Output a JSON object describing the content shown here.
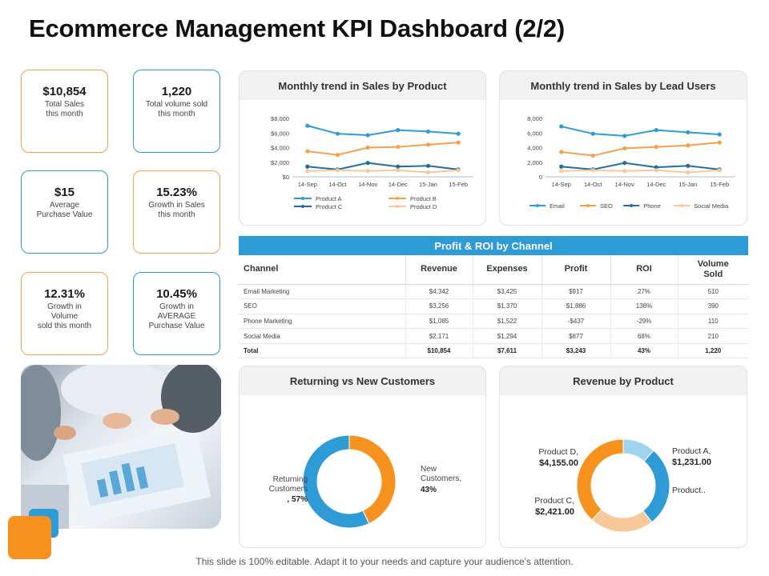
{
  "title": "Ecommerce Management KPI Dashboard (2/2)",
  "kpis": [
    {
      "value": "$10,854",
      "label": "Total Sales\nthis month"
    },
    {
      "value": "1,220",
      "label": "Total volume sold\nthis month"
    },
    {
      "value": "$15",
      "label": "Average\nPurchase Value"
    },
    {
      "value": "15.23%",
      "label": "Growth in Sales\nthis month"
    },
    {
      "value": "12.31%",
      "label": "Growth in\nVolume\nsold this month"
    },
    {
      "value": "10.45%",
      "label": "Growth in\nAVERAGE\nPurchase Value"
    }
  ],
  "colors": {
    "blue": "#2e9bd6",
    "orange": "#f6a04d",
    "darkblue": "#1f6f9b",
    "peach": "#f7c99a",
    "lightblue": "#9fd4ef"
  },
  "footer": "This slide is 100% editable. Adapt it to your needs and capture your audience's attention.",
  "chart_data": [
    {
      "type": "line",
      "title": "Monthly trend in Sales by Product",
      "categories": [
        "14-Sep",
        "14-Oct",
        "14-Nov",
        "14-Dec",
        "15-Jan",
        "15-Feb"
      ],
      "yticks": [
        "$0",
        "$2,000",
        "$4,000",
        "$6,000",
        "$8,000"
      ],
      "ylim": [
        0,
        8000
      ],
      "legend_position": "bottom",
      "series": [
        {
          "name": "Product A",
          "color": "#2e9bd6",
          "values": [
            7000,
            5900,
            5700,
            6400,
            6200,
            5900
          ]
        },
        {
          "name": "Product B",
          "color": "#f6a04d",
          "values": [
            3500,
            3000,
            4000,
            4100,
            4400,
            4700
          ]
        },
        {
          "name": "Product C",
          "color": "#1f6f9b",
          "values": [
            1400,
            1000,
            1900,
            1400,
            1500,
            1000
          ]
        },
        {
          "name": "Product D",
          "color": "#f7c99a",
          "values": [
            800,
            900,
            800,
            900,
            600,
            900
          ]
        }
      ]
    },
    {
      "type": "line",
      "title": "Monthly trend in Sales by Lead Users",
      "categories": [
        "14-Sep",
        "14-Oct",
        "14-Nov",
        "14-Dec",
        "15-Jan",
        "15-Feb"
      ],
      "yticks": [
        "0",
        "2,000",
        "4,000",
        "6,000",
        "8,000"
      ],
      "ylim": [
        0,
        8000
      ],
      "legend_position": "bottom",
      "series": [
        {
          "name": "Email",
          "color": "#2e9bd6",
          "values": [
            6900,
            5900,
            5600,
            6400,
            6100,
            5800
          ]
        },
        {
          "name": "SEO",
          "color": "#f6a04d",
          "values": [
            3400,
            2900,
            3900,
            4100,
            4300,
            4700
          ]
        },
        {
          "name": "Phone",
          "color": "#1f6f9b",
          "values": [
            1400,
            1000,
            1900,
            1300,
            1500,
            1000
          ]
        },
        {
          "name": "Social Media",
          "color": "#f7c99a",
          "values": [
            800,
            900,
            800,
            900,
            600,
            900
          ]
        }
      ]
    },
    {
      "type": "table",
      "title": "Profit & ROI by Channel",
      "columns": [
        "Channel",
        "Revenue",
        "Expenses",
        "Profit",
        "ROI",
        "Volume Sold"
      ],
      "rows": [
        [
          "Email Marketing",
          "$4,342",
          "$3,425",
          "$917",
          "27%",
          "510"
        ],
        [
          "SEO",
          "$3,256",
          "$1,370",
          "$1,886",
          "138%",
          "390"
        ],
        [
          "Phone Marketing",
          "$1,085",
          "$1,522",
          "-$437",
          "-29%",
          "110"
        ],
        [
          "Social Media",
          "$2,171",
          "$1,294",
          "$877",
          "68%",
          "210"
        ],
        [
          "Total",
          "$10,854",
          "$7,611",
          "$3,243",
          "43%",
          "1,220"
        ]
      ]
    },
    {
      "type": "pie",
      "title": "Returning vs New Customers",
      "slices": [
        {
          "label": "Returning Customers, 57%",
          "value": 57,
          "color": "#2e9bd6"
        },
        {
          "label": "New Customers, 43%",
          "value": 43,
          "color": "#f7921e"
        }
      ]
    },
    {
      "type": "pie",
      "title": "Revenue by Product",
      "slices": [
        {
          "name": "Product A,",
          "value_label": "$1,231.00",
          "value": 1231,
          "color": "#9fd4ef"
        },
        {
          "name": "Product..",
          "value_label": "",
          "value": 3047,
          "color": "#2e9bd6"
        },
        {
          "name": "Product C,",
          "value_label": "$2,421.00",
          "value": 2421,
          "color": "#f7c99a"
        },
        {
          "name": "Product D,",
          "value_label": "$4,155.00",
          "value": 4155,
          "color": "#f7921e"
        }
      ]
    }
  ]
}
